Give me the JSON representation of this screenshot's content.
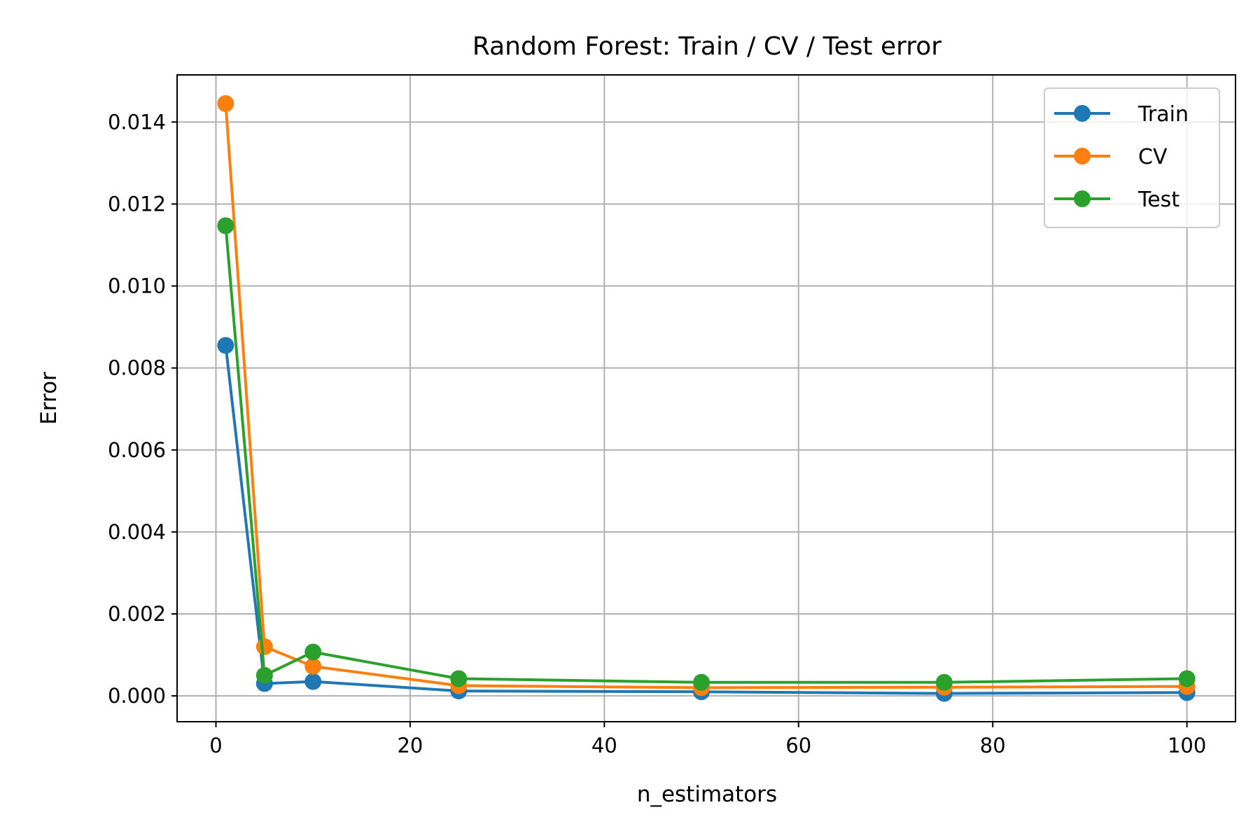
{
  "chart_data": {
    "type": "line",
    "title": "Random Forest: Train / CV / Test error",
    "xlabel": "n_estimators",
    "ylabel": "Error",
    "x": [
      1,
      5,
      10,
      25,
      50,
      75,
      100
    ],
    "xlim": [
      -4,
      105
    ],
    "ylim": [
      -0.00063,
      0.01515
    ],
    "xticks": [
      0,
      20,
      40,
      60,
      80,
      100
    ],
    "yticks": [
      0.0,
      0.002,
      0.004,
      0.006,
      0.008,
      0.01,
      0.012,
      0.014
    ],
    "xtick_labels": [
      "0",
      "20",
      "40",
      "60",
      "80",
      "100"
    ],
    "ytick_labels": [
      "0.000",
      "0.002",
      "0.004",
      "0.006",
      "0.008",
      "0.010",
      "0.012",
      "0.014"
    ],
    "grid": true,
    "legend_position": "top-right",
    "series": [
      {
        "name": "Train",
        "color": "#1f77b4",
        "values": [
          0.00855,
          0.0003,
          0.00035,
          0.00012,
          0.0001,
          6e-05,
          8e-05
        ]
      },
      {
        "name": "CV",
        "color": "#ff7f0e",
        "values": [
          0.01445,
          0.0012,
          0.00072,
          0.00025,
          0.0002,
          0.00021,
          0.00023
        ]
      },
      {
        "name": "Test",
        "color": "#2ca02c",
        "values": [
          0.01147,
          0.0005,
          0.00107,
          0.00042,
          0.00033,
          0.00033,
          0.00042
        ]
      }
    ]
  }
}
